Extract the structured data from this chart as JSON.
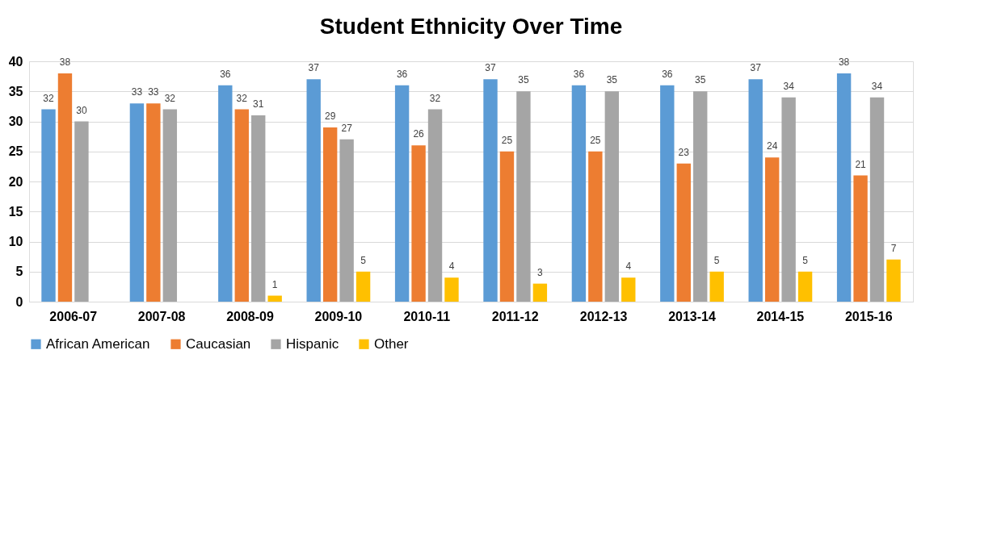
{
  "chart_data": {
    "type": "bar",
    "title": "Student Ethnicity Over Time",
    "categories": [
      "2006-07",
      "2007-08",
      "2008-09",
      "2009-10",
      "2010-11",
      "2011-12",
      "2012-13",
      "2013-14",
      "2014-15",
      "2015-16"
    ],
    "series": [
      {
        "name": "African American",
        "color": "#5b9bd5",
        "values": [
          32,
          33,
          36,
          37,
          36,
          37,
          36,
          36,
          37,
          38
        ]
      },
      {
        "name": "Caucasian",
        "color": "#ed7d31",
        "values": [
          38,
          33,
          32,
          29,
          26,
          25,
          25,
          23,
          24,
          21
        ]
      },
      {
        "name": "Hispanic",
        "color": "#a5a5a5",
        "values": [
          30,
          32,
          31,
          27,
          32,
          35,
          35,
          35,
          34,
          34
        ]
      },
      {
        "name": "Other",
        "color": "#ffc000",
        "values": [
          null,
          null,
          1,
          5,
          4,
          3,
          4,
          5,
          5,
          7
        ]
      }
    ],
    "ylim": [
      0,
      40
    ],
    "yticks": [
      0,
      5,
      10,
      15,
      20,
      25,
      30,
      35,
      40
    ],
    "grid": "y",
    "legend": "bottom",
    "data_labels": true
  }
}
